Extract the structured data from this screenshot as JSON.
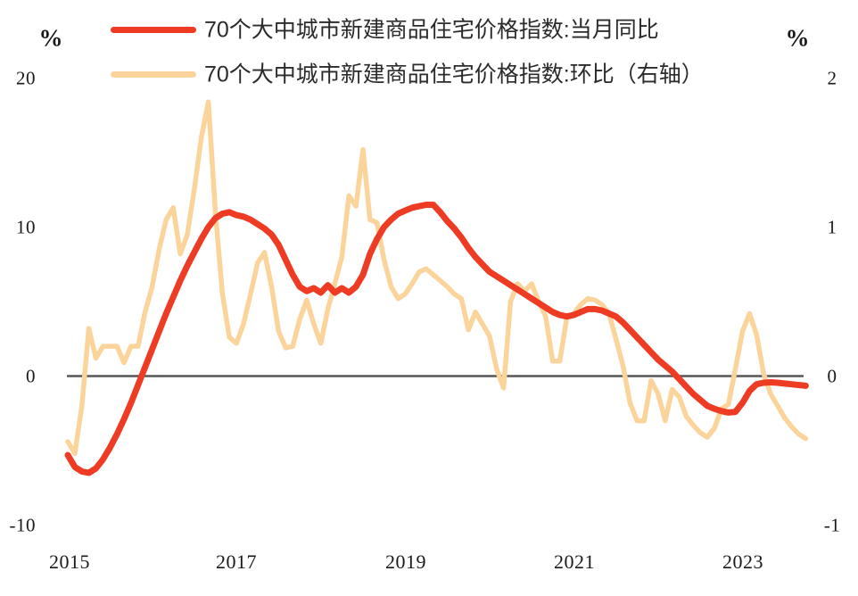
{
  "axes": {
    "left": {
      "unit": "%",
      "ticks": [
        "20",
        "10",
        "0",
        "-10"
      ]
    },
    "right": {
      "unit": "%",
      "ticks": [
        "2",
        "1",
        "0",
        "-1"
      ]
    },
    "x": {
      "ticks": [
        "2015",
        "2017",
        "2019",
        "2021",
        "2023"
      ]
    }
  },
  "legend": {
    "items": [
      {
        "label": "70个大中城市新建商品住宅价格指数:当月同比",
        "color": "#ee3b23"
      },
      {
        "label": "70个大中城市新建商品住宅价格指数:环比（右轴）",
        "color": "#fbd49b"
      }
    ]
  },
  "colors": {
    "yoy_line": "#ee3b23",
    "mom_line": "#fbd49b",
    "zero_line": "#575757",
    "text": "#1a1a1a",
    "background": "#ffffff"
  },
  "chart_data": {
    "type": "line",
    "frequency": "monthly",
    "x_start": "2015-01",
    "x_end": "2023-10",
    "x_tick_labels": [
      "2015",
      "2017",
      "2019",
      "2021",
      "2023"
    ],
    "left_axis_label": "%",
    "right_axis_label": "%",
    "left_ylim": [
      -10,
      20
    ],
    "right_ylim": [
      -1,
      2
    ],
    "grid": false,
    "zero_line": true,
    "legend_position": "top-left",
    "series": [
      {
        "name": "70个大中城市新建商品住宅价格指数:当月同比",
        "axis": "left",
        "color": "#ee3b23",
        "values": [
          -5.3,
          -6.1,
          -6.4,
          -6.5,
          -6.2,
          -5.6,
          -4.8,
          -3.9,
          -2.9,
          -1.8,
          -0.6,
          0.6,
          1.8,
          3.0,
          4.2,
          5.3,
          6.4,
          7.4,
          8.3,
          9.2,
          10.0,
          10.6,
          10.9,
          11.0,
          10.8,
          10.7,
          10.5,
          10.2,
          9.9,
          9.5,
          8.8,
          7.8,
          6.8,
          6.0,
          5.7,
          5.9,
          5.6,
          6.1,
          5.6,
          5.9,
          5.6,
          6.0,
          6.8,
          8.2,
          9.2,
          10.0,
          10.5,
          10.9,
          11.1,
          11.3,
          11.4,
          11.5,
          11.5,
          11.0,
          10.4,
          9.9,
          9.3,
          8.6,
          8.0,
          7.5,
          7.0,
          6.7,
          6.4,
          6.1,
          5.8,
          5.5,
          5.2,
          4.9,
          4.6,
          4.3,
          4.1,
          4.0,
          4.1,
          4.3,
          4.5,
          4.5,
          4.4,
          4.2,
          4.0,
          3.6,
          3.1,
          2.6,
          2.1,
          1.6,
          1.1,
          0.7,
          0.3,
          -0.2,
          -0.7,
          -1.2,
          -1.6,
          -2.0,
          -2.2,
          -2.35,
          -2.45,
          -2.4,
          -1.8,
          -1.0,
          -0.55,
          -0.45,
          -0.42,
          -0.45,
          -0.5,
          -0.55,
          -0.6,
          -0.65
        ]
      },
      {
        "name": "70个大中城市新建商品住宅价格指数:环比（右轴）",
        "axis": "right",
        "color": "#fbd49b",
        "values": [
          -0.44,
          -0.52,
          -0.2,
          0.32,
          0.12,
          0.2,
          0.2,
          0.2,
          0.09,
          0.2,
          0.2,
          0.43,
          0.6,
          0.85,
          1.05,
          1.13,
          0.82,
          0.95,
          1.25,
          1.6,
          1.84,
          1.1,
          0.55,
          0.26,
          0.22,
          0.35,
          0.55,
          0.76,
          0.83,
          0.6,
          0.3,
          0.19,
          0.2,
          0.38,
          0.51,
          0.35,
          0.22,
          0.45,
          0.62,
          0.8,
          1.21,
          1.14,
          1.52,
          1.05,
          1.03,
          0.78,
          0.6,
          0.52,
          0.55,
          0.62,
          0.7,
          0.72,
          0.68,
          0.64,
          0.6,
          0.55,
          0.52,
          0.31,
          0.43,
          0.35,
          0.27,
          0.05,
          -0.08,
          0.5,
          0.62,
          0.57,
          0.62,
          0.5,
          0.4,
          0.1,
          0.1,
          0.39,
          0.42,
          0.48,
          0.52,
          0.51,
          0.48,
          0.42,
          0.25,
          0.07,
          -0.18,
          -0.3,
          -0.3,
          -0.03,
          -0.12,
          -0.3,
          -0.09,
          -0.14,
          -0.27,
          -0.33,
          -0.38,
          -0.41,
          -0.35,
          -0.22,
          -0.19,
          0.05,
          0.3,
          0.42,
          0.28,
          0.02,
          -0.12,
          -0.2,
          -0.28,
          -0.34,
          -0.39,
          -0.42
        ]
      }
    ]
  }
}
